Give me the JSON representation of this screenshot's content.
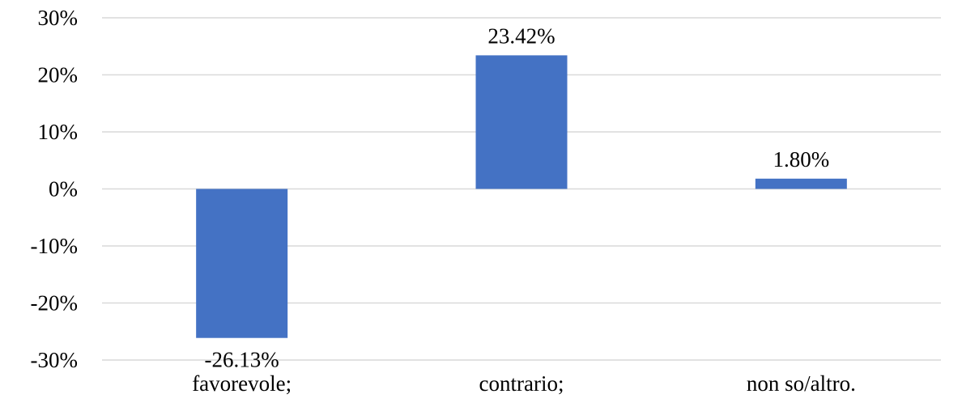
{
  "chart_data": {
    "type": "bar",
    "title": "",
    "xlabel": "",
    "ylabel": "",
    "categories": [
      "favorevole;",
      "contrario;",
      "non so/altro."
    ],
    "values": [
      -26.13,
      23.42,
      1.8
    ],
    "data_labels": [
      "-26.13%",
      "23.42%",
      "1.80%"
    ],
    "ylim": [
      -30,
      30
    ],
    "y_ticks": [
      30,
      20,
      10,
      0,
      -10,
      -20,
      -30
    ],
    "y_tick_labels": [
      "30%",
      "20%",
      "10%",
      "0%",
      "-10%",
      "-20%",
      "-30%"
    ],
    "grid": true,
    "legend": "none",
    "bar_color": "#4472c4",
    "grid_color": "#d9d9d9"
  }
}
